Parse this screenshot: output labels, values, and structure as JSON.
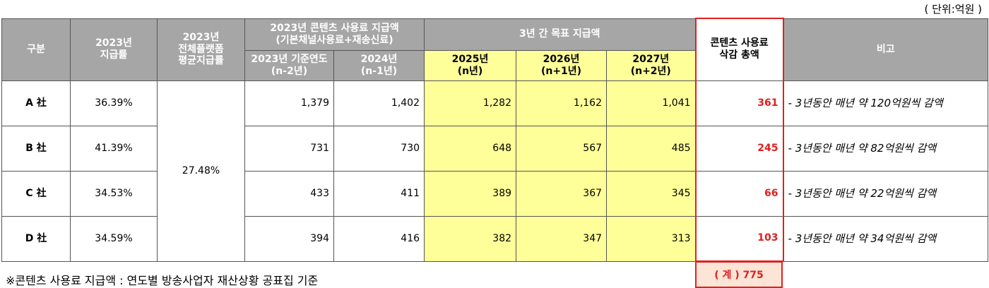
{
  "unit": "( 단위:억원 )",
  "header": {
    "category": "구분",
    "rate_2023": "2023년\n지급률",
    "platform_avg": "2023년\n전체플랫폼\n평균지급률",
    "payment_2023": "2023년 콘텐츠 사용료 지급액\n(기본채널사용료+재송신료)",
    "target": "3년 간 목표 지급액",
    "reduction": "콘텐츠 사용료\n삭감 총액",
    "note": "비고",
    "sub": [
      "2023년 기준연도\n(n-2년)",
      "2024년\n(n-1년)",
      "2025년\n(n년)",
      "2026년\n(n+1년)",
      "2027년\n(n+2년)"
    ]
  },
  "platform_avg_value": "27.48%",
  "rows": [
    {
      "name": "A 社",
      "rate": "36.39%",
      "amounts": [
        "1,379",
        "1,402",
        "1,282",
        "1,162",
        "1,041"
      ],
      "reduction": "361",
      "note": "- 3년동안 매년 약 120억원씩 감액"
    },
    {
      "name": "B 社",
      "rate": "41.39%",
      "amounts": [
        "731",
        "730",
        "648",
        "567",
        "485"
      ],
      "reduction": "245",
      "note": "- 3년동안 매년 약 82억원씩 감액"
    },
    {
      "name": "C 社",
      "rate": "34.53%",
      "amounts": [
        "433",
        "411",
        "389",
        "367",
        "345"
      ],
      "reduction": "66",
      "note": "- 3년동안 매년 약 22억원씩 감액"
    },
    {
      "name": "D 社",
      "rate": "34.59%",
      "amounts": [
        "394",
        "416",
        "382",
        "347",
        "313"
      ],
      "reduction": "103",
      "note": "- 3년동안 매년 약 34억원씩 감액"
    }
  ],
  "total": "( 계 ) 775",
  "footnote": "※콘텐츠 사용료 지급액 : 연도별 방송사업자 재산상황 공표집 기준"
}
